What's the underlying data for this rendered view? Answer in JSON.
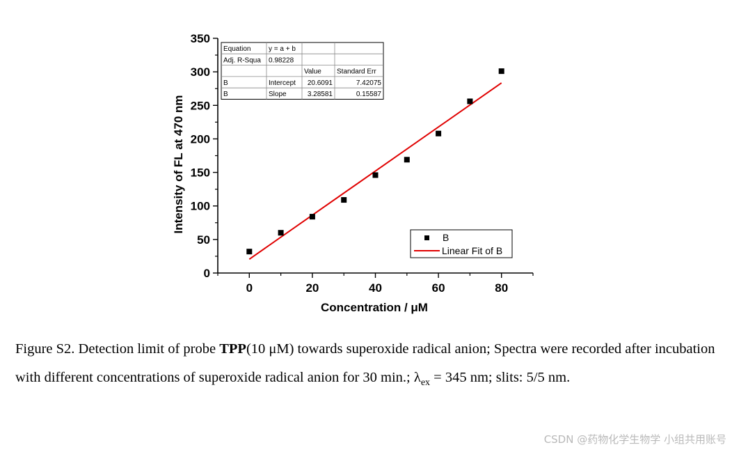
{
  "chart_data": {
    "type": "scatter",
    "xlabel": "Concentration / μM",
    "ylabel": "Intensity of FL at 470 nm",
    "xlim": [
      -10,
      90
    ],
    "ylim": [
      0,
      350
    ],
    "x_ticks": [
      0,
      20,
      40,
      60,
      80
    ],
    "y_ticks": [
      0,
      50,
      100,
      150,
      200,
      250,
      300,
      350
    ],
    "x_tick_labels": [
      "0",
      "20",
      "40",
      "60",
      "80"
    ],
    "y_tick_labels": [
      "0",
      "50",
      "100",
      "150",
      "200",
      "250",
      "300",
      "350"
    ],
    "series": [
      {
        "name": "B",
        "kind": "points",
        "color": "#000000",
        "x": [
          0,
          10,
          20,
          30,
          40,
          50,
          60,
          70,
          80
        ],
        "y": [
          32,
          60,
          84,
          109,
          146,
          169,
          208,
          256,
          301
        ]
      },
      {
        "name": "Linear Fit of B",
        "kind": "line",
        "color": "#e00000",
        "x": [
          0,
          80
        ],
        "y": [
          20.6091,
          283.4739
        ]
      }
    ],
    "legend": {
      "position": "bottom-right",
      "entries": [
        "B",
        "Linear Fit of B"
      ]
    },
    "fit_table": {
      "rows": [
        [
          "Equation",
          "y = a + b",
          "",
          ""
        ],
        [
          "Adj. R-Squa",
          "0.98228",
          "",
          ""
        ],
        [
          "",
          "",
          "Value",
          "Standard Err"
        ],
        [
          "B",
          "Intercept",
          "20.6091",
          "7.42075"
        ],
        [
          "B",
          "Slope",
          "3.28581",
          "0.15587"
        ]
      ]
    }
  },
  "caption": {
    "part1": "Figure S2. Detection limit of probe ",
    "bold": "TPP",
    "part2": "(10 μM) towards superoxide radical anion; Spectra were recorded after incubation with different concentrations of superoxide radical anion for 30 min.; λ",
    "sub": "ex",
    "part3": " = 345 nm; slits: 5/5 nm."
  },
  "watermark": "CSDN @药物化学生物学 小组共用账号"
}
